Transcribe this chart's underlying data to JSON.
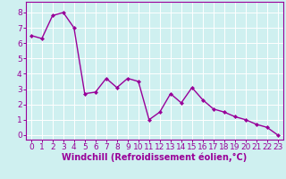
{
  "x": [
    0,
    1,
    2,
    3,
    4,
    5,
    6,
    7,
    8,
    9,
    10,
    11,
    12,
    13,
    14,
    15,
    16,
    17,
    18,
    19,
    20,
    21,
    22,
    23
  ],
  "y": [
    6.5,
    6.3,
    7.8,
    8.0,
    7.0,
    2.7,
    2.8,
    3.7,
    3.1,
    3.7,
    3.5,
    1.0,
    1.5,
    2.7,
    2.1,
    3.1,
    2.3,
    1.7,
    1.5,
    1.2,
    1.0,
    0.7,
    0.5,
    0.0
  ],
  "line_color": "#990099",
  "marker": "D",
  "marker_size": 2,
  "linewidth": 1.0,
  "bg_color": "#cff0f0",
  "grid_color": "#ffffff",
  "xlabel": "Windchill (Refroidissement éolien,°C)",
  "xlabel_color": "#990099",
  "tick_color": "#990099",
  "spine_color": "#990099",
  "ylim": [
    -0.3,
    8.7
  ],
  "xlim": [
    -0.5,
    23.5
  ],
  "yticks": [
    0,
    1,
    2,
    3,
    4,
    5,
    6,
    7,
    8
  ],
  "xticks": [
    0,
    1,
    2,
    3,
    4,
    5,
    6,
    7,
    8,
    9,
    10,
    11,
    12,
    13,
    14,
    15,
    16,
    17,
    18,
    19,
    20,
    21,
    22,
    23
  ],
  "fontsize_ticks": 6.5,
  "fontsize_xlabel": 7.0
}
